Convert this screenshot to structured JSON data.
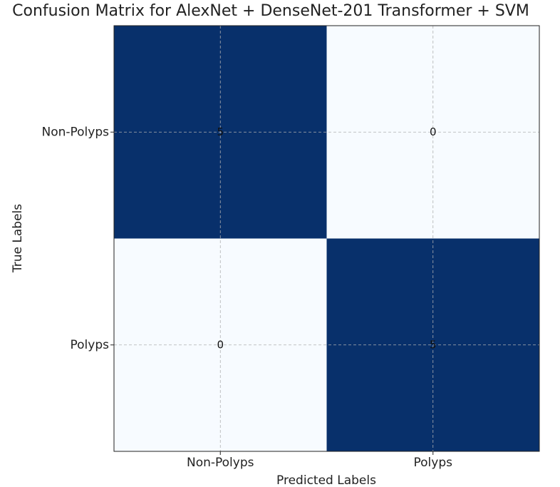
{
  "chart_data": {
    "type": "heatmap",
    "title": "Confusion Matrix for AlexNet + DenseNet-201 Transformer + SVM",
    "xlabel": "Predicted Labels",
    "ylabel": "True Labels",
    "x_categories": [
      "Non-Polyps",
      "Polyps"
    ],
    "y_categories": [
      "Non-Polyps",
      "Polyps"
    ],
    "values": [
      [
        5,
        0
      ],
      [
        0,
        5
      ]
    ],
    "colormap": [
      "#f7fbff",
      "#08306b"
    ],
    "grid": true
  }
}
